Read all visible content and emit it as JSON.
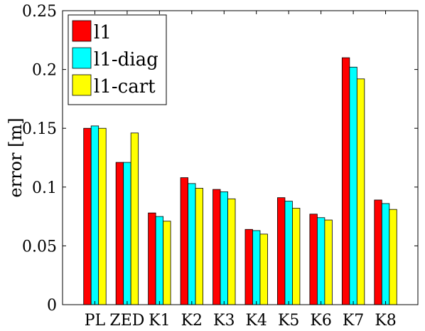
{
  "chart_data": {
    "type": "bar",
    "title": "",
    "xlabel": "",
    "ylabel": "error [m]",
    "ylim": [
      0,
      0.25
    ],
    "yticks": [
      "0",
      "0.05",
      "0.1",
      "0.15",
      "0.2",
      "0.25"
    ],
    "categories": [
      "PL",
      "ZED",
      "K1",
      "K2",
      "K3",
      "K4",
      "K5",
      "K6",
      "K7",
      "K8"
    ],
    "legend_position": "top-left",
    "grid": false,
    "series": [
      {
        "name": "l1",
        "color": "#ff0000",
        "values": [
          0.15,
          0.121,
          0.078,
          0.108,
          0.098,
          0.064,
          0.091,
          0.077,
          0.21,
          0.089
        ]
      },
      {
        "name": "l1-diag",
        "color": "#00ffff",
        "values": [
          0.152,
          0.121,
          0.075,
          0.103,
          0.096,
          0.063,
          0.088,
          0.074,
          0.202,
          0.086
        ]
      },
      {
        "name": "l1-cart",
        "color": "#ffff00",
        "values": [
          0.15,
          0.146,
          0.071,
          0.099,
          0.09,
          0.06,
          0.082,
          0.072,
          0.192,
          0.081
        ]
      }
    ]
  }
}
